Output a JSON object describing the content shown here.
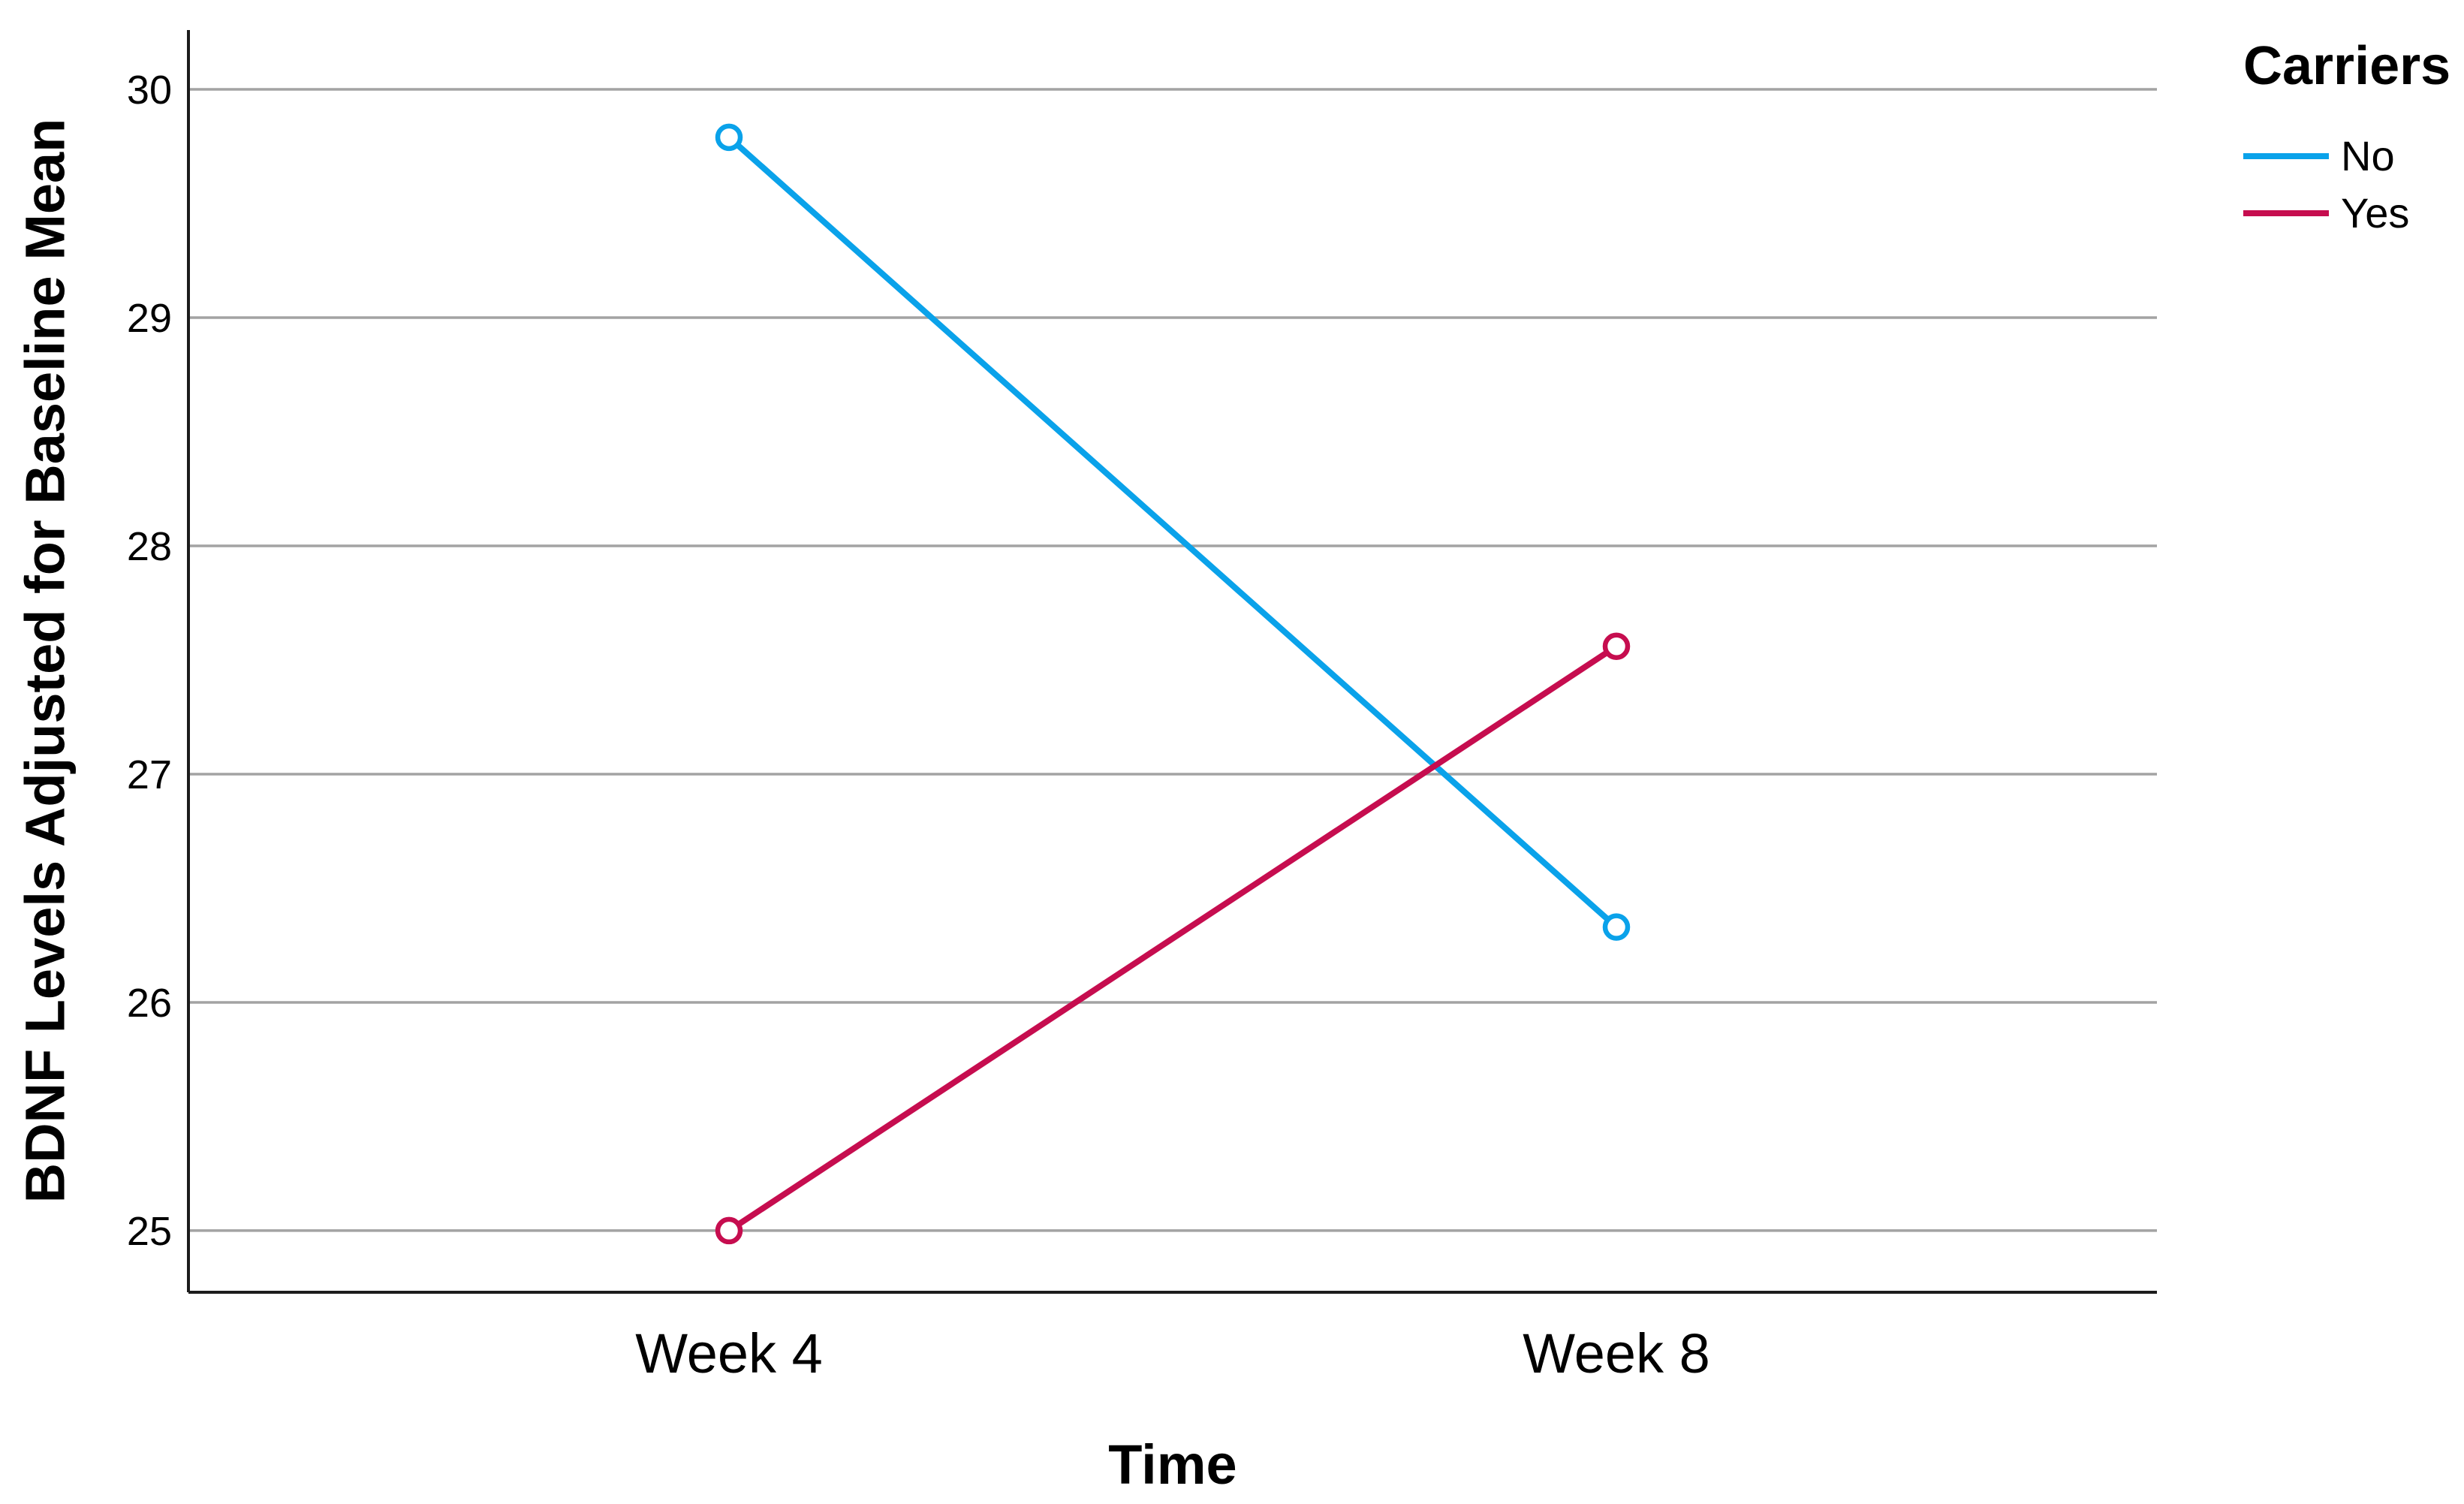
{
  "chart_data": {
    "type": "line",
    "categories": [
      "Week 4",
      "Week 8"
    ],
    "series": [
      {
        "name": "No",
        "color": "#0aa2ea",
        "values": [
          29.79,
          26.33
        ]
      },
      {
        "name": "Yes",
        "color": "#c60d4f",
        "values": [
          25.0,
          27.56
        ]
      }
    ],
    "legend_title": "Carriers",
    "xlabel": "Time",
    "ylabel": "BDNF Levels Adjusted for Baseline Mean",
    "yticks": [
      25,
      26,
      27,
      28,
      29,
      30
    ],
    "ylim": [
      24.73,
      30.26
    ],
    "grid": "horizontal-only",
    "legend_position": "top-right",
    "marker": "open-circle",
    "colors": {
      "gridline": "#a3a3a3",
      "axis": "#1c1c1c",
      "text": "#000000",
      "background": "#ffffff"
    }
  }
}
